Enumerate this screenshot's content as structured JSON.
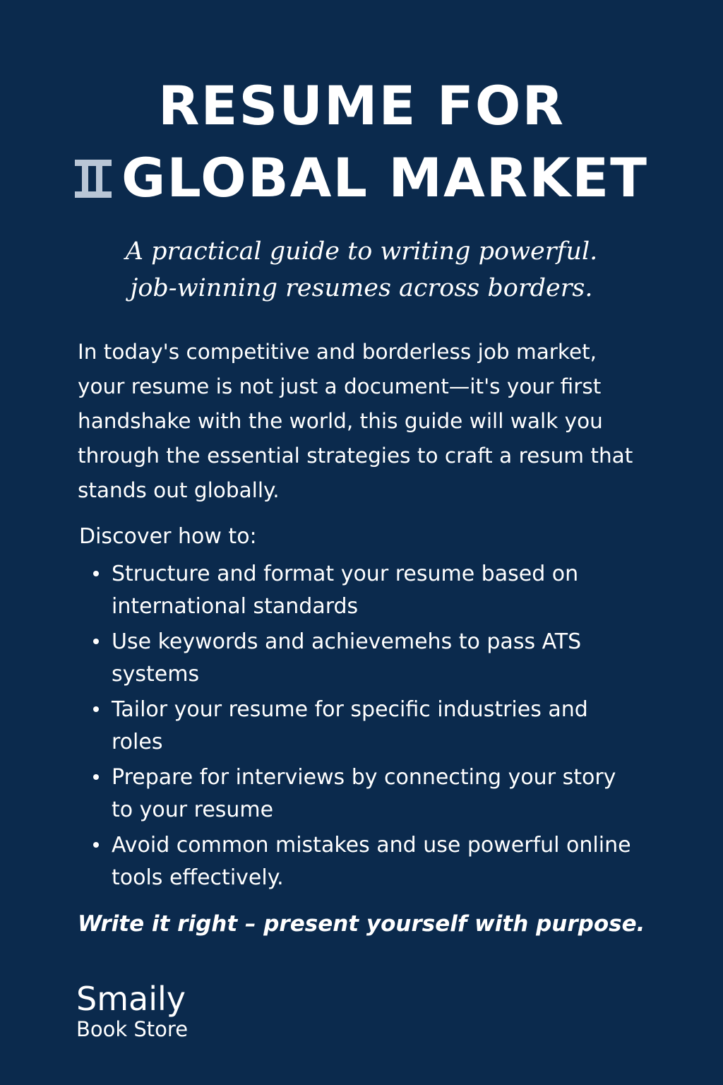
{
  "cover": {
    "title_line_1": "RESUME FOR",
    "title_line_2": "GLOBAL MARKET",
    "title_mark_icon": "pillar-logo-icon",
    "subtitle_line_1": "A practical guide to writing powerful.",
    "subtitle_line_2": "job-winning resumes across borders.",
    "intro": "In today's competitive and borderless job market, your resume is not just a document—it's your first handshake with the world, this guide will walk you through the essential strategies to craft a resum that stands out globally.",
    "discover_heading": "Discover how to:",
    "bullets": [
      "Structure and format your resume based on international standards",
      "Use keywords and achievemehs to pass ATS systems",
      "Tailor your resume for specific industries and roles",
      "Prepare for interviews by connecting your story to your resume",
      "Avoid common mistakes and use powerful online tools effectively."
    ],
    "tagline": "Write it right – present yourself with purpose.",
    "brand_name": "Smaily",
    "brand_sub": "Book Store"
  },
  "colors": {
    "background": "#0b2a4d",
    "text": "#ffffff",
    "mark": "#b9c6d6"
  }
}
